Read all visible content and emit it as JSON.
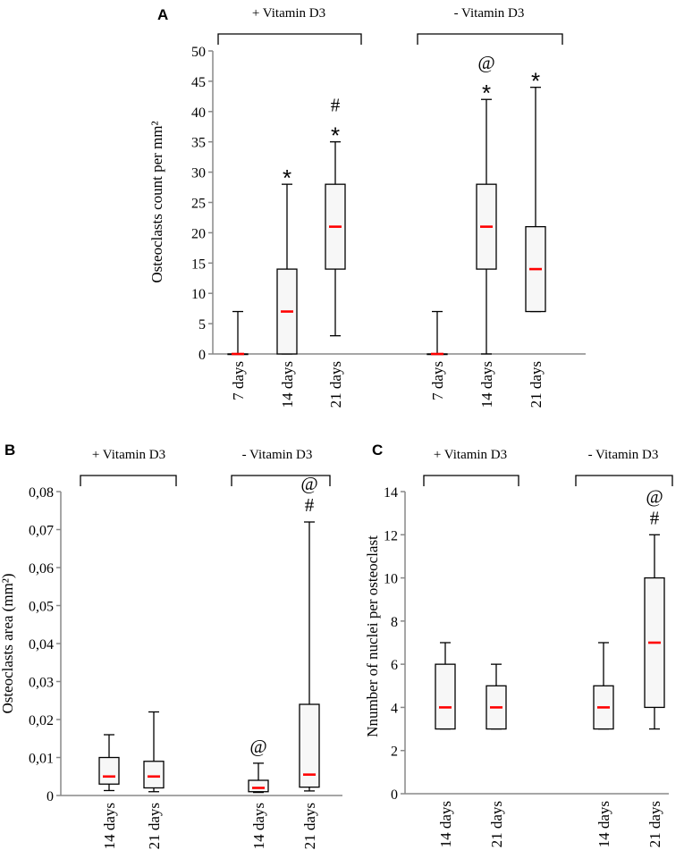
{
  "colors": {
    "box_fill": "#f7f7f7",
    "median": "#ff0000",
    "stroke": "#000000",
    "axis": "#888888"
  },
  "chart_data": [
    {
      "panel": "A",
      "type": "box",
      "ylabel": "Osteoclasts count per mm²",
      "ylim": [
        0,
        50
      ],
      "yticks": [
        "0",
        "5",
        "10",
        "15",
        "20",
        "25",
        "30",
        "35",
        "40",
        "45",
        "50"
      ],
      "groups": [
        {
          "label": "+ Vitamin D3",
          "categories": [
            "7 days",
            "14 days",
            "21 days"
          ]
        },
        {
          "label": "- Vitamin D3",
          "categories": [
            "7 days",
            "14 days",
            "21 days"
          ]
        }
      ],
      "boxes": [
        {
          "category": "7 days",
          "group": "+ Vitamin D3",
          "min": 0,
          "q1": 0,
          "median": 0,
          "q3": 0,
          "max": 7,
          "marks": []
        },
        {
          "category": "14 days",
          "group": "+ Vitamin D3",
          "min": 0,
          "q1": 0,
          "median": 7,
          "q3": 14,
          "max": 28,
          "marks": [
            "*"
          ]
        },
        {
          "category": "21 days",
          "group": "+ Vitamin D3",
          "min": 3,
          "q1": 14,
          "median": 21,
          "q3": 28,
          "max": 35,
          "marks": [
            "*",
            "#"
          ]
        },
        {
          "category": "7 days",
          "group": "- Vitamin D3",
          "min": 0,
          "q1": 0,
          "median": 0,
          "q3": 0,
          "max": 7,
          "marks": []
        },
        {
          "category": "14 days",
          "group": "- Vitamin D3",
          "min": 0,
          "q1": 14,
          "median": 21,
          "q3": 28,
          "max": 42,
          "marks": [
            "*",
            "@"
          ]
        },
        {
          "category": "21 days",
          "group": "- Vitamin D3",
          "min": 7,
          "q1": 7,
          "median": 14,
          "q3": 21,
          "max": 44,
          "marks": [
            "*"
          ]
        }
      ]
    },
    {
      "panel": "B",
      "type": "box",
      "ylabel": "Osteoclasts area (mm²)",
      "ylim": [
        0,
        0.08
      ],
      "yticks": [
        "0",
        "0,01",
        "0,02",
        "0,03",
        "0,04",
        "0,05",
        "0,06",
        "0,07",
        "0,08"
      ],
      "groups": [
        {
          "label": "+ Vitamin D3",
          "categories": [
            "14 days",
            "21 days"
          ]
        },
        {
          "label": "- Vitamin D3",
          "categories": [
            "14 days",
            "21 days"
          ]
        }
      ],
      "boxes": [
        {
          "category": "14 days",
          "group": "+ Vitamin D3",
          "min": 0.0013,
          "q1": 0.003,
          "median": 0.005,
          "q3": 0.01,
          "max": 0.016,
          "marks": []
        },
        {
          "category": "21 days",
          "group": "+ Vitamin D3",
          "min": 0.001,
          "q1": 0.002,
          "median": 0.005,
          "q3": 0.009,
          "max": 0.022,
          "marks": []
        },
        {
          "category": "14 days",
          "group": "- Vitamin D3",
          "min": 0.0008,
          "q1": 0.001,
          "median": 0.002,
          "q3": 0.004,
          "max": 0.0085,
          "marks": [
            "@"
          ]
        },
        {
          "category": "21 days",
          "group": "- Vitamin D3",
          "min": 0.0012,
          "q1": 0.0022,
          "median": 0.0055,
          "q3": 0.024,
          "max": 0.072,
          "marks": [
            "#",
            "@"
          ]
        }
      ]
    },
    {
      "panel": "C",
      "type": "box",
      "ylabel": "Nnumber of nuclei per osteoclast",
      "ylim": [
        0,
        14
      ],
      "yticks": [
        "0",
        "2",
        "4",
        "6",
        "8",
        "10",
        "12",
        "14"
      ],
      "groups": [
        {
          "label": "+ Vitamin D3",
          "categories": [
            "14 days",
            "21 days"
          ]
        },
        {
          "label": "- Vitamin D3",
          "categories": [
            "14 days",
            "21 days"
          ]
        }
      ],
      "boxes": [
        {
          "category": "14 days",
          "group": "+ Vitamin D3",
          "min": 3,
          "q1": 3,
          "median": 4,
          "q3": 6,
          "max": 7,
          "marks": []
        },
        {
          "category": "21 days",
          "group": "+ Vitamin D3",
          "min": 3,
          "q1": 3,
          "median": 4,
          "q3": 5,
          "max": 6,
          "marks": []
        },
        {
          "category": "14 days",
          "group": "- Vitamin D3",
          "min": 3,
          "q1": 3,
          "median": 4,
          "q3": 5,
          "max": 7,
          "marks": []
        },
        {
          "category": "21 days",
          "group": "- Vitamin D3",
          "min": 3,
          "q1": 4,
          "median": 7,
          "q3": 10,
          "max": 12,
          "marks": [
            "#",
            "@"
          ]
        }
      ]
    }
  ]
}
